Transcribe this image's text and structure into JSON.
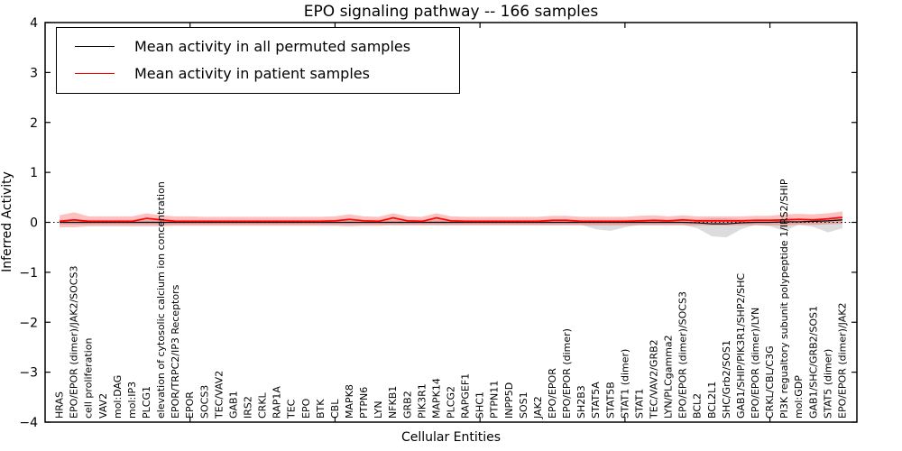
{
  "chart_data": {
    "type": "line",
    "title": "EPO signaling pathway -- 166 samples",
    "xlabel": "Cellular Entities",
    "ylabel": "Inferred Activity",
    "ylim": [
      -4,
      4
    ],
    "grid": false,
    "legend_position": "upper left",
    "zero_line": {
      "style": "dotted",
      "color": "#000000",
      "y": 0
    },
    "ytick_values": [
      -4,
      -3,
      -2,
      -1,
      0,
      1,
      2,
      3,
      4
    ],
    "ytick_labels": [
      "−4",
      "−3",
      "−2",
      "−1",
      "0",
      "1",
      "2",
      "3",
      "4"
    ],
    "xtick_positions": [
      10,
      20,
      30,
      40,
      50
    ],
    "categories": [
      "HRAS",
      "EPO/EPOR (dimer)/JAK2/SOCS3",
      "cell proliferation",
      "VAV2",
      "mol:DAG",
      "mol:IP3",
      "PLCG1",
      "elevation of cytosolic calcium ion concentration",
      "EPOR/TRPC2/IP3 Receptors",
      "EPOR",
      "SOCS3",
      "TEC/VAV2",
      "GAB1",
      "IRS2",
      "CRKL",
      "RAP1A",
      "TEC",
      "EPO",
      "BTK",
      "CBL",
      "MAPK8",
      "PTPN6",
      "LYN",
      "NFKB1",
      "GRB2",
      "PIK3R1",
      "MAPK14",
      "PLCG2",
      "RAPGEF1",
      "SHC1",
      "PTPN11",
      "INPP5D",
      "SOS1",
      "JAK2",
      "EPO/EPOR",
      "EPO/EPOR (dimer)",
      "SH2B3",
      "STAT5A",
      "STAT5B",
      "STAT1 (dimer)",
      "STAT1",
      "TEC/VAV2/GRB2",
      "LYN/PLCgamma2",
      "EPO/EPOR (dimer)/SOCS3",
      "BCL2",
      "BCL2L1",
      "SHC/Grb2/SOS1",
      "GAB1/SHIP/PIK3R1/SHP2/SHC",
      "EPO/EPOR (dimer)/LYN",
      "CRKL/CBL/C3G",
      "PI3K regualtory subunit polypeptide 1/IRS2/SHIP",
      "mol:GDP",
      "GAB1/SHC/GRB2/SOS1",
      "STAT5 (dimer)",
      "EPO/EPOR (dimer)/JAK2"
    ],
    "series": [
      {
        "name": "Mean activity in all permuted samples",
        "color": "#000000",
        "line_width": 1.2,
        "band_color": "rgba(130,130,130,0.28)",
        "values": [
          0,
          0,
          0,
          0,
          0,
          0,
          0,
          0,
          0,
          0,
          0,
          0,
          0,
          0,
          0,
          0,
          0,
          0,
          0,
          0,
          0,
          0,
          0,
          0,
          0,
          0,
          0,
          0,
          0,
          0,
          0,
          0,
          0,
          0,
          0,
          0,
          0,
          0,
          0,
          0,
          0,
          0,
          0,
          0,
          -0.01,
          -0.03,
          -0.03,
          -0.01,
          0,
          0,
          0.01,
          0.01,
          0.02,
          0.03,
          0.05
        ],
        "band_upper": [
          0.05,
          0.05,
          0.05,
          0.05,
          0.05,
          0.05,
          0.05,
          0.05,
          0.05,
          0.05,
          0.05,
          0.05,
          0.05,
          0.05,
          0.05,
          0.05,
          0.05,
          0.05,
          0.05,
          0.05,
          0.05,
          0.05,
          0.05,
          0.05,
          0.05,
          0.05,
          0.05,
          0.05,
          0.05,
          0.05,
          0.05,
          0.05,
          0.05,
          0.05,
          0.05,
          0.05,
          0.05,
          0.05,
          0.05,
          0.05,
          0.05,
          0.05,
          0.05,
          0.05,
          0.06,
          0.08,
          0.08,
          0.06,
          0.05,
          0.05,
          0.05,
          0.05,
          0.05,
          0.07,
          0.1
        ],
        "band_lower": [
          -0.05,
          -0.05,
          -0.05,
          -0.05,
          -0.05,
          -0.05,
          -0.05,
          -0.05,
          -0.05,
          -0.05,
          -0.05,
          -0.05,
          -0.05,
          -0.05,
          -0.05,
          -0.05,
          -0.05,
          -0.05,
          -0.05,
          -0.05,
          -0.05,
          -0.05,
          -0.05,
          -0.05,
          -0.05,
          -0.05,
          -0.05,
          -0.05,
          -0.05,
          -0.05,
          -0.05,
          -0.05,
          -0.05,
          -0.05,
          -0.05,
          -0.05,
          -0.05,
          -0.14,
          -0.17,
          -0.1,
          -0.05,
          -0.05,
          -0.05,
          -0.05,
          -0.12,
          -0.28,
          -0.3,
          -0.14,
          -0.05,
          -0.08,
          -0.17,
          -0.05,
          -0.09,
          -0.2,
          -0.12
        ]
      },
      {
        "name": "Mean activity in patient samples",
        "color": "#ff0000",
        "line_width": 1.7,
        "band_color": "rgba(255,45,45,0.30)",
        "values": [
          0.02,
          0.05,
          0.02,
          0.02,
          0.02,
          0.02,
          0.08,
          0.05,
          0.02,
          0.02,
          0.02,
          0.02,
          0.02,
          0.02,
          0.02,
          0.02,
          0.02,
          0.02,
          0.02,
          0.03,
          0.06,
          0.03,
          0.02,
          0.09,
          0.03,
          0.02,
          0.09,
          0.03,
          0.02,
          0.02,
          0.02,
          0.02,
          0.02,
          0.02,
          0.04,
          0.04,
          0.02,
          0.02,
          0.02,
          0.02,
          0.03,
          0.04,
          0.03,
          0.05,
          0.03,
          0.03,
          0.03,
          0.03,
          0.04,
          0.04,
          0.05,
          0.06,
          0.05,
          0.07,
          0.1
        ],
        "band_upper": [
          0.14,
          0.2,
          0.12,
          0.12,
          0.12,
          0.12,
          0.18,
          0.14,
          0.12,
          0.12,
          0.11,
          0.11,
          0.11,
          0.11,
          0.11,
          0.11,
          0.11,
          0.11,
          0.11,
          0.12,
          0.16,
          0.12,
          0.11,
          0.18,
          0.12,
          0.11,
          0.18,
          0.12,
          0.11,
          0.11,
          0.11,
          0.11,
          0.11,
          0.11,
          0.13,
          0.13,
          0.11,
          0.11,
          0.11,
          0.11,
          0.13,
          0.14,
          0.12,
          0.14,
          0.12,
          0.12,
          0.12,
          0.12,
          0.13,
          0.13,
          0.16,
          0.17,
          0.16,
          0.18,
          0.22
        ],
        "band_lower": [
          -0.1,
          -0.1,
          -0.08,
          -0.08,
          -0.08,
          -0.08,
          -0.08,
          -0.08,
          -0.07,
          -0.07,
          -0.07,
          -0.07,
          -0.07,
          -0.07,
          -0.07,
          -0.07,
          -0.07,
          -0.07,
          -0.07,
          -0.07,
          -0.08,
          -0.07,
          -0.07,
          -0.06,
          -0.06,
          -0.06,
          -0.06,
          -0.06,
          -0.06,
          -0.06,
          -0.06,
          -0.06,
          -0.06,
          -0.06,
          -0.06,
          -0.06,
          -0.06,
          -0.06,
          -0.06,
          -0.06,
          -0.06,
          -0.06,
          -0.06,
          -0.06,
          -0.06,
          -0.06,
          -0.06,
          -0.06,
          -0.06,
          -0.06,
          -0.06,
          -0.05,
          -0.05,
          -0.04,
          -0.03
        ]
      }
    ]
  }
}
